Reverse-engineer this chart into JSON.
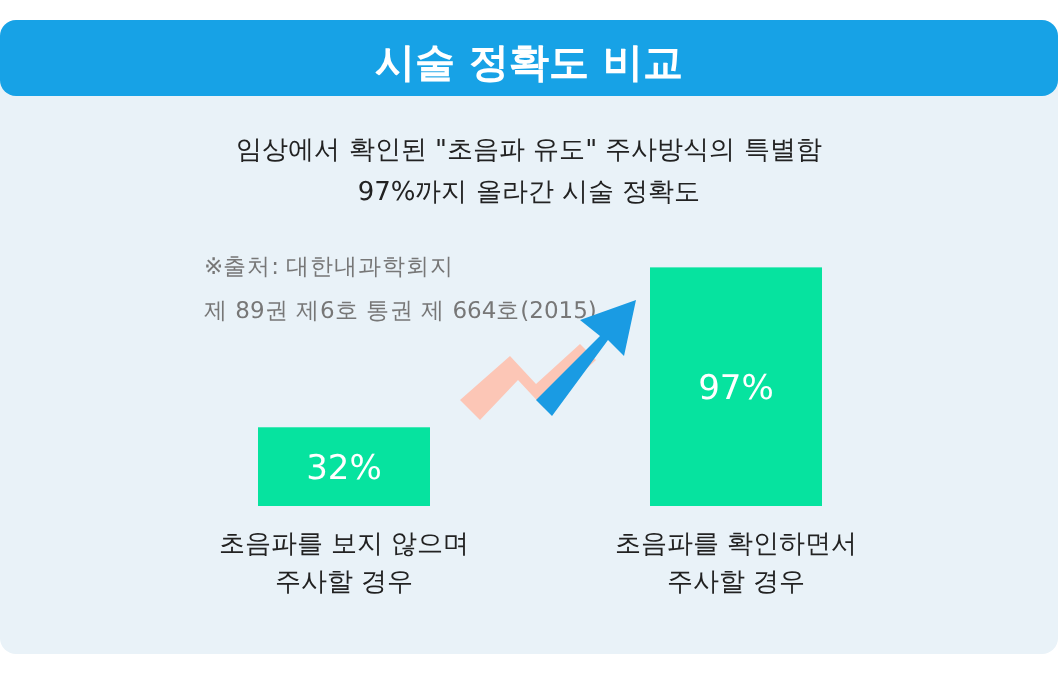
{
  "chart_data": {
    "type": "bar",
    "title": "시술 정확도 비교",
    "subtitle": "임상에서 확인된 \"초음파 유도\" 주사방식의 특별함\n97%까지 올라간 시술 정확도",
    "categories": [
      "초음파를 보지 않으며\n주사할 경우",
      "초음파를 확인하면서\n주사할 경우"
    ],
    "values": [
      32,
      97
    ],
    "value_labels": [
      "32%",
      "97%"
    ],
    "color": "#06e39f",
    "annotations": [
      "※출처: 대한내과학회지",
      "제 89권 제6호 통권 제 664호(2015)"
    ]
  }
}
